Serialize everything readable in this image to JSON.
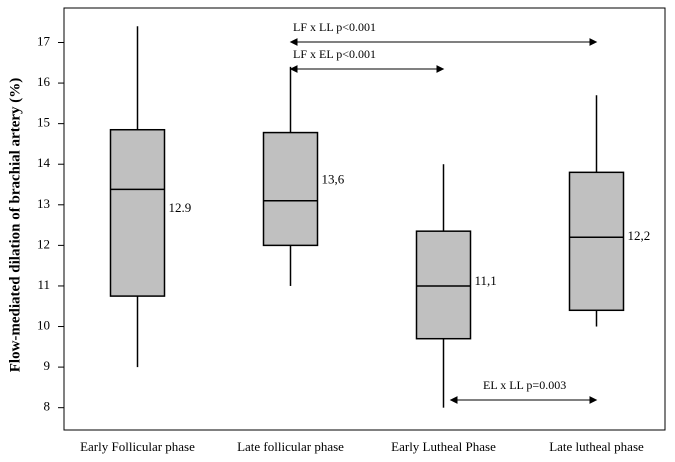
{
  "chart_data": {
    "type": "box",
    "y_label": "Flow-mediated dilation of brachial artery (%)",
    "categories": [
      "Early Follicular phase",
      "Late follicular phase",
      "Early Lutheal Phase",
      "Late lutheal phase"
    ],
    "whislo": [
      9.0,
      11.0,
      8.0,
      10.0
    ],
    "q1": [
      10.75,
      12.0,
      9.7,
      10.4
    ],
    "median": [
      13.38,
      13.1,
      11.0,
      12.2
    ],
    "q3": [
      14.85,
      14.78,
      12.35,
      13.8
    ],
    "whishi": [
      17.4,
      16.4,
      14.0,
      15.7
    ],
    "means": [
      12.9,
      13.6,
      11.1,
      12.2
    ],
    "value_labels": [
      "12.9",
      "13,6",
      "11,1",
      "12,2"
    ],
    "color": "#c0c0c0",
    "ylim": [
      7.45,
      17.85
    ],
    "yticks": [
      8,
      9,
      10,
      11,
      12,
      13,
      14,
      15,
      16,
      17
    ],
    "annotations": [
      "LF x LL p<0.001",
      "LF x EL p<0.001",
      "EL x LL p=0.003"
    ]
  }
}
